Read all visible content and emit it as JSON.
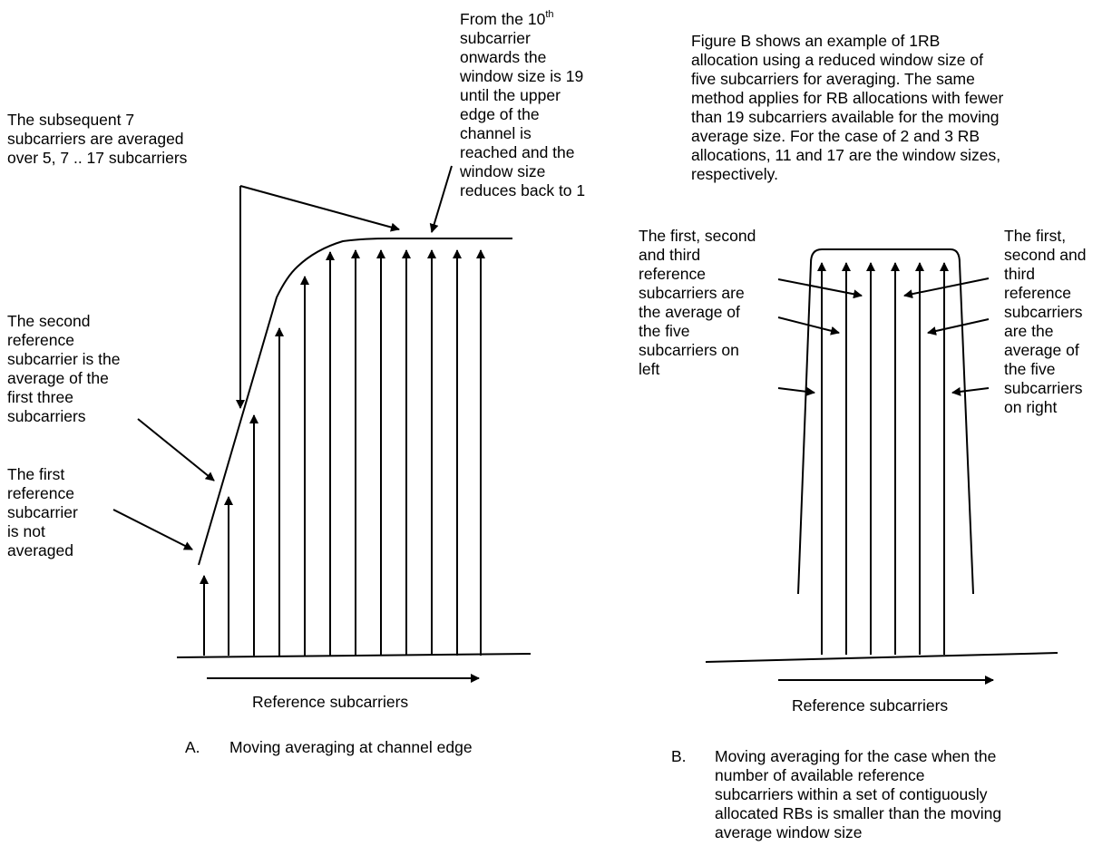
{
  "figure_a": {
    "label_first": "The first\nreference\nsubcarrier\nis not\naveraged",
    "label_second": "The second\nreference\nsubcarrier is the\naverage of the\nfirst three\nsubcarriers",
    "label_subsequent": "The subsequent 7\nsubcarriers are averaged\nover 5, 7 .. 17 subcarriers",
    "label_tenth_pre": "From the 10",
    "label_tenth_sup": "th",
    "label_tenth_post": "\nsubcarrier\nonwards the\nwindow size is 19\nuntil the upper\nedge of the\nchannel is\nreached and the\nwindow size\nreduces back to 1",
    "axis_label": "Reference subcarriers",
    "caption_marker": "A.",
    "caption": "Moving averaging at channel edge"
  },
  "figure_b": {
    "description": "Figure B shows an example of 1RB\nallocation using a reduced window size of\nfive subcarriers for averaging. The same\nmethod applies for RB allocations with fewer\nthan 19 subcarriers available for the moving\naverage size. For the case of 2 and 3 RB\nallocations, 11 and 17 are the window sizes,\nrespectively.",
    "label_left": "The first, second\nand third\nreference\nsubcarriers are\nthe average of\nthe five\nsubcarriers on\nleft",
    "label_right": "The first,\nsecond and\nthird\nreference\nsubcarriers\nare the\naverage of\nthe five\nsubcarriers\non right",
    "axis_label": "Reference subcarriers",
    "caption_marker": "B.",
    "caption": "Moving averaging for the case when the\nnumber of available reference\nsubcarriers within a set of contiguously\nallocated RBs is smaller than the moving\naverage window size"
  }
}
